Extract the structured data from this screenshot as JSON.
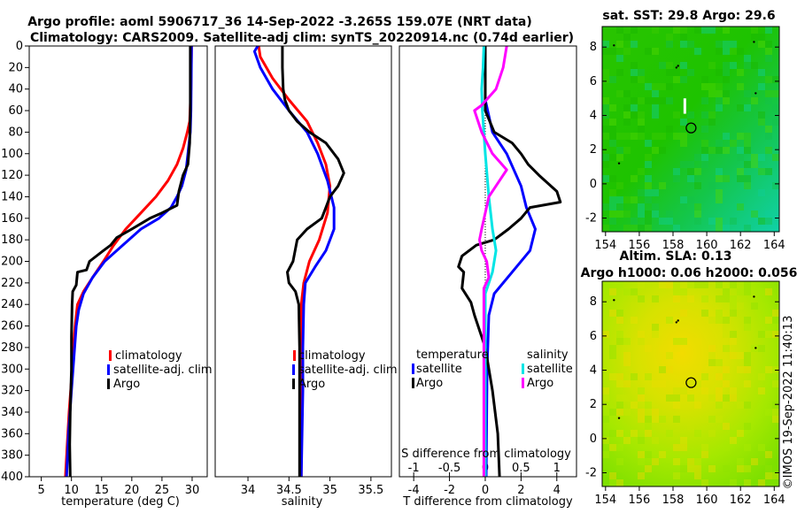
{
  "title_line1": "Argo profile: aoml 5906717_36 14-Sep-2022 -3.265S 159.07E (NRT data)",
  "title_line2": "Climatology: CARS2009. Satellite-adj clim: synTS_20220914.nc (0.74d earlier)",
  "colors": {
    "climatology": "#ff0000",
    "satellite": "#0000ff",
    "argo": "#000000",
    "sat_salinity": "#00e5e5",
    "argo_salinity": "#ff00ff"
  },
  "chart_data": [
    {
      "type": "line",
      "name": "temperature-profile",
      "xlabel": "temperature (deg C)",
      "xlim": [
        3,
        32.5
      ],
      "xticks": [
        "5",
        "10",
        "15",
        "20",
        "25",
        "30"
      ],
      "ylim": [
        0,
        400
      ],
      "yticks": [
        "0",
        "20",
        "40",
        "60",
        "80",
        "100",
        "120",
        "140",
        "160",
        "180",
        "200",
        "220",
        "240",
        "260",
        "280",
        "300",
        "320",
        "340",
        "360",
        "380",
        "400"
      ],
      "legend": [
        "climatology",
        "satellite-adj. clim",
        "Argo"
      ],
      "series": [
        {
          "name": "climatology",
          "points": [
            [
              29.9,
              0
            ],
            [
              29.8,
              40
            ],
            [
              29.6,
              70
            ],
            [
              29.2,
              80
            ],
            [
              28.5,
              95
            ],
            [
              27.5,
              110
            ],
            [
              26,
              125
            ],
            [
              24,
              140
            ],
            [
              21.5,
              155
            ],
            [
              19,
              170
            ],
            [
              17,
              185
            ],
            [
              15.3,
              200
            ],
            [
              13.5,
              215
            ],
            [
              12,
              228
            ],
            [
              11,
              240
            ],
            [
              10.6,
              260
            ],
            [
              10.3,
              280
            ],
            [
              10,
              310
            ],
            [
              9.6,
              340
            ],
            [
              9.3,
              370
            ],
            [
              9,
              400
            ]
          ]
        },
        {
          "name": "satellite-adj. clim",
          "points": [
            [
              29.9,
              0
            ],
            [
              29.8,
              60
            ],
            [
              29.7,
              80
            ],
            [
              29.3,
              100
            ],
            [
              29,
              115
            ],
            [
              28.3,
              130
            ],
            [
              27.5,
              140
            ],
            [
              26.5,
              150
            ],
            [
              24.5,
              160
            ],
            [
              21.5,
              170
            ],
            [
              18.5,
              185
            ],
            [
              15.5,
              200
            ],
            [
              13.5,
              215
            ],
            [
              12,
              230
            ],
            [
              11.2,
              245
            ],
            [
              10.8,
              260
            ],
            [
              10.4,
              290
            ],
            [
              10,
              320
            ],
            [
              9.5,
              360
            ],
            [
              9.2,
              400
            ]
          ]
        },
        {
          "name": "Argo",
          "points": [
            [
              29.7,
              0
            ],
            [
              29.7,
              40
            ],
            [
              29.7,
              60
            ],
            [
              29.6,
              90
            ],
            [
              29.3,
              110
            ],
            [
              28.5,
              120
            ],
            [
              27.8,
              135
            ],
            [
              27.5,
              148
            ],
            [
              25,
              155
            ],
            [
              23,
              160
            ],
            [
              20,
              170
            ],
            [
              17.5,
              178
            ],
            [
              16.5,
              185
            ],
            [
              15.3,
              190
            ],
            [
              13,
              200
            ],
            [
              12.5,
              208
            ],
            [
              11,
              210
            ],
            [
              10.8,
              222
            ],
            [
              10.2,
              228
            ],
            [
              10.1,
              240
            ],
            [
              10,
              270
            ],
            [
              10,
              300
            ],
            [
              9.8,
              340
            ],
            [
              9.7,
              370
            ],
            [
              9.8,
              400
            ]
          ]
        }
      ]
    },
    {
      "type": "line",
      "name": "salinity-profile",
      "xlabel": "salinity",
      "xlim": [
        33.6,
        35.75
      ],
      "xticks": [
        "34",
        "34.5",
        "35",
        "35.5"
      ],
      "ylim": [
        0,
        400
      ],
      "legend": [
        "climatology",
        "satellite-adj. clim",
        "Argo"
      ],
      "series": [
        {
          "name": "climatology",
          "points": [
            [
              34.13,
              0
            ],
            [
              34.15,
              10
            ],
            [
              34.3,
              30
            ],
            [
              34.5,
              50
            ],
            [
              34.72,
              70
            ],
            [
              34.85,
              90
            ],
            [
              34.95,
              110
            ],
            [
              35,
              130
            ],
            [
              34.97,
              155
            ],
            [
              34.87,
              180
            ],
            [
              34.75,
              200
            ],
            [
              34.68,
              220
            ],
            [
              34.65,
              240
            ],
            [
              34.66,
              280
            ],
            [
              34.66,
              320
            ],
            [
              34.65,
              360
            ],
            [
              34.65,
              400
            ]
          ]
        },
        {
          "name": "satellite-adj. clim",
          "points": [
            [
              34.12,
              0
            ],
            [
              34.08,
              5
            ],
            [
              34.15,
              20
            ],
            [
              34.3,
              40
            ],
            [
              34.5,
              60
            ],
            [
              34.72,
              80
            ],
            [
              34.85,
              100
            ],
            [
              34.97,
              125
            ],
            [
              35.05,
              150
            ],
            [
              35.05,
              170
            ],
            [
              34.95,
              190
            ],
            [
              34.82,
              205
            ],
            [
              34.7,
              220
            ],
            [
              34.68,
              240
            ],
            [
              34.67,
              280
            ],
            [
              34.67,
              320
            ],
            [
              34.66,
              360
            ],
            [
              34.65,
              400
            ]
          ]
        },
        {
          "name": "Argo",
          "points": [
            [
              34.42,
              0
            ],
            [
              34.42,
              20
            ],
            [
              34.43,
              40
            ],
            [
              34.45,
              50
            ],
            [
              34.5,
              60
            ],
            [
              34.6,
              70
            ],
            [
              34.75,
              80
            ],
            [
              34.95,
              90
            ],
            [
              35.1,
              105
            ],
            [
              35.17,
              118
            ],
            [
              35.1,
              130
            ],
            [
              35,
              140
            ],
            [
              34.95,
              150
            ],
            [
              34.9,
              160
            ],
            [
              34.72,
              170
            ],
            [
              34.6,
              180
            ],
            [
              34.55,
              200
            ],
            [
              34.48,
              210
            ],
            [
              34.5,
              220
            ],
            [
              34.58,
              228
            ],
            [
              34.62,
              240
            ],
            [
              34.63,
              280
            ],
            [
              34.63,
              320
            ],
            [
              34.63,
              360
            ],
            [
              34.63,
              400
            ]
          ]
        }
      ]
    },
    {
      "type": "line",
      "name": "difference-profile",
      "xlabel": "T difference from climatology",
      "xlabel_top": "S difference from climatology",
      "xlim_T": [
        -4.8,
        5.1
      ],
      "xticks_T": [
        "-4",
        "-2",
        "0",
        "2",
        "4"
      ],
      "xlim_S": [
        -1.2,
        1.275
      ],
      "xticks_S": [
        "-1",
        "-0.5",
        "0",
        "0.5",
        "1"
      ],
      "ylim": [
        0,
        400
      ],
      "legend_temperature": {
        "title": "temperature",
        "items": [
          "satellite",
          "Argo"
        ]
      },
      "legend_salinity": {
        "title": "salinity",
        "items": [
          "satellite",
          "Argo"
        ]
      },
      "series": [
        {
          "name": "temperature satellite",
          "axis": "T",
          "points": [
            [
              0,
              0
            ],
            [
              0,
              50
            ],
            [
              0.4,
              80
            ],
            [
              1.2,
              100
            ],
            [
              2,
              130
            ],
            [
              2.3,
              150
            ],
            [
              2.8,
              170
            ],
            [
              2.5,
              190
            ],
            [
              1.5,
              210
            ],
            [
              0.5,
              230
            ],
            [
              0.2,
              250
            ],
            [
              0.1,
              300
            ],
            [
              0.05,
              400
            ]
          ]
        },
        {
          "name": "temperature Argo",
          "axis": "T",
          "points": [
            [
              0,
              0
            ],
            [
              0,
              60
            ],
            [
              0.5,
              80
            ],
            [
              1.5,
              90
            ],
            [
              2,
              100
            ],
            [
              2.4,
              110
            ],
            [
              3,
              120
            ],
            [
              4,
              135
            ],
            [
              4.2,
              145
            ],
            [
              2.5,
              150
            ],
            [
              2,
              160
            ],
            [
              1.3,
              170
            ],
            [
              0.5,
              180
            ],
            [
              -0.5,
              185
            ],
            [
              -1.3,
              195
            ],
            [
              -1.5,
              205
            ],
            [
              -1.2,
              210
            ],
            [
              -1.3,
              225
            ],
            [
              -0.8,
              238
            ],
            [
              -0.6,
              250
            ],
            [
              -0.3,
              265
            ],
            [
              0,
              280
            ],
            [
              0.4,
              320
            ],
            [
              0.7,
              360
            ],
            [
              0.8,
              400
            ]
          ]
        },
        {
          "name": "salinity satellite",
          "axis": "S",
          "points": [
            [
              -0.02,
              0
            ],
            [
              -0.03,
              20
            ],
            [
              -0.05,
              40
            ],
            [
              -0.04,
              60
            ],
            [
              -0.02,
              80
            ],
            [
              0,
              100
            ],
            [
              0.05,
              140
            ],
            [
              0.1,
              170
            ],
            [
              0.15,
              190
            ],
            [
              0.1,
              210
            ],
            [
              0,
              230
            ],
            [
              0,
              300
            ],
            [
              0,
              400
            ]
          ]
        },
        {
          "name": "salinity Argo",
          "axis": "S",
          "points": [
            [
              0.3,
              0
            ],
            [
              0.25,
              20
            ],
            [
              0.15,
              40
            ],
            [
              -0.05,
              55
            ],
            [
              -0.15,
              60
            ],
            [
              -0.05,
              80
            ],
            [
              0.1,
              100
            ],
            [
              0.3,
              115
            ],
            [
              0.2,
              125
            ],
            [
              0.05,
              140
            ],
            [
              0,
              155
            ],
            [
              -0.05,
              170
            ],
            [
              -0.08,
              180
            ],
            [
              -0.05,
              190
            ],
            [
              0.02,
              200
            ],
            [
              0.05,
              215
            ],
            [
              -0.02,
              225
            ],
            [
              -0.02,
              250
            ],
            [
              -0.02,
              300
            ],
            [
              -0.02,
              400
            ]
          ]
        }
      ]
    },
    {
      "type": "heatmap",
      "name": "sst-map",
      "title": "sat. SST: 29.8 Argo: 29.6",
      "xlim": [
        153.8,
        164.3
      ],
      "xticks": [
        "154",
        "156",
        "158",
        "160",
        "162",
        "164"
      ],
      "ylim": [
        -2.8,
        9.2
      ],
      "yticks": [
        "-2",
        "0",
        "2",
        "4",
        "6",
        "8"
      ]
    },
    {
      "type": "heatmap",
      "name": "sla-map",
      "title_line1": "Altim. SLA: 0.13",
      "title_line2": "Argo h1000: 0.06 h2000: 0.056",
      "xlim": [
        153.8,
        164.3
      ],
      "xticks": [
        "154",
        "156",
        "158",
        "160",
        "162",
        "164"
      ],
      "ylim": [
        -2.8,
        9.2
      ],
      "yticks": [
        "-2",
        "0",
        "2",
        "4",
        "6",
        "8"
      ]
    }
  ],
  "copyright": "©IMOS 19-Sep-2022 11:40:13"
}
